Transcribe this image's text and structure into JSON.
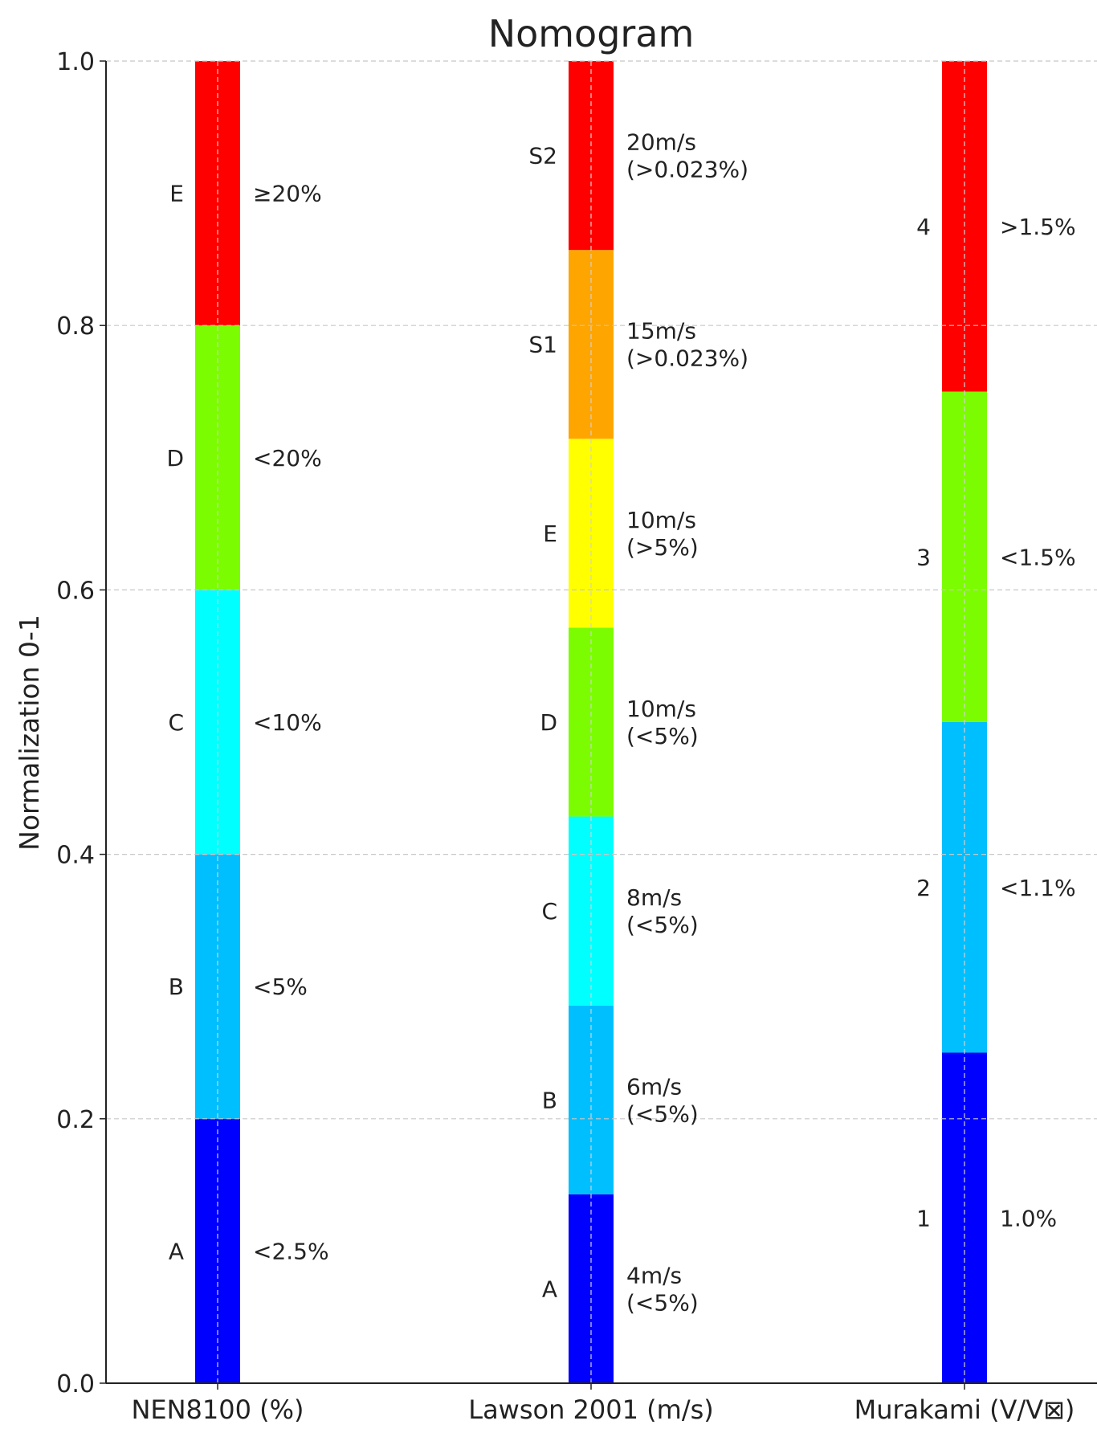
{
  "chart_data": {
    "type": "bar",
    "title": "Nomogram",
    "ylabel": "Normalization 0-1",
    "xlabel": "",
    "ylim": [
      0,
      1
    ],
    "yticks": [
      "0.0",
      "0.2",
      "0.4",
      "0.6",
      "0.8",
      "1.0"
    ],
    "grid": "horizontal dashed",
    "categories": [
      "NEN8100 (%)",
      "Lawson 2001 (m/s)",
      "Murakami (V/V⊠)"
    ],
    "columns": [
      {
        "category": "NEN8100 (%)",
        "segments": [
          {
            "class": "A",
            "label": "<2.5%",
            "start": 0.0,
            "end": 0.2,
            "color": "#0000ff"
          },
          {
            "class": "B",
            "label": "<5%",
            "start": 0.2,
            "end": 0.4,
            "color": "#00bfff"
          },
          {
            "class": "C",
            "label": "<10%",
            "start": 0.4,
            "end": 0.6,
            "color": "#00ffff"
          },
          {
            "class": "D",
            "label": "<20%",
            "start": 0.6,
            "end": 0.8,
            "color": "#7cfc00"
          },
          {
            "class": "E",
            "label": "≥20%",
            "start": 0.8,
            "end": 1.0,
            "color": "#ff0000"
          }
        ]
      },
      {
        "category": "Lawson 2001 (m/s)",
        "segments": [
          {
            "class": "A",
            "label": "4m/s\n(<5%)",
            "start": 0.0,
            "end": 0.1429,
            "color": "#0000ff"
          },
          {
            "class": "B",
            "label": "6m/s\n(<5%)",
            "start": 0.1429,
            "end": 0.2857,
            "color": "#00bfff"
          },
          {
            "class": "C",
            "label": "8m/s\n(<5%)",
            "start": 0.2857,
            "end": 0.4286,
            "color": "#00ffff"
          },
          {
            "class": "D",
            "label": "10m/s\n(<5%)",
            "start": 0.4286,
            "end": 0.5714,
            "color": "#7cfc00"
          },
          {
            "class": "E",
            "label": "10m/s\n(>5%)",
            "start": 0.5714,
            "end": 0.7143,
            "color": "#ffff00"
          },
          {
            "class": "S1",
            "label": "15m/s\n(>0.023%)",
            "start": 0.7143,
            "end": 0.8571,
            "color": "#ffa500"
          },
          {
            "class": "S2",
            "label": "20m/s\n(>0.023%)",
            "start": 0.8571,
            "end": 1.0,
            "color": "#ff0000"
          }
        ]
      },
      {
        "category": "Murakami (V/V⊠)",
        "segments": [
          {
            "class": "1",
            "label": "1.0%",
            "start": 0.0,
            "end": 0.25,
            "color": "#0000ff"
          },
          {
            "class": "2",
            "label": "<1.1%",
            "start": 0.25,
            "end": 0.5,
            "color": "#00bfff"
          },
          {
            "class": "3",
            "label": "<1.5%",
            "start": 0.5,
            "end": 0.75,
            "color": "#7cfc00"
          },
          {
            "class": "4",
            "label": ">1.5%",
            "start": 0.75,
            "end": 1.0,
            "color": "#ff0000"
          }
        ]
      }
    ]
  }
}
